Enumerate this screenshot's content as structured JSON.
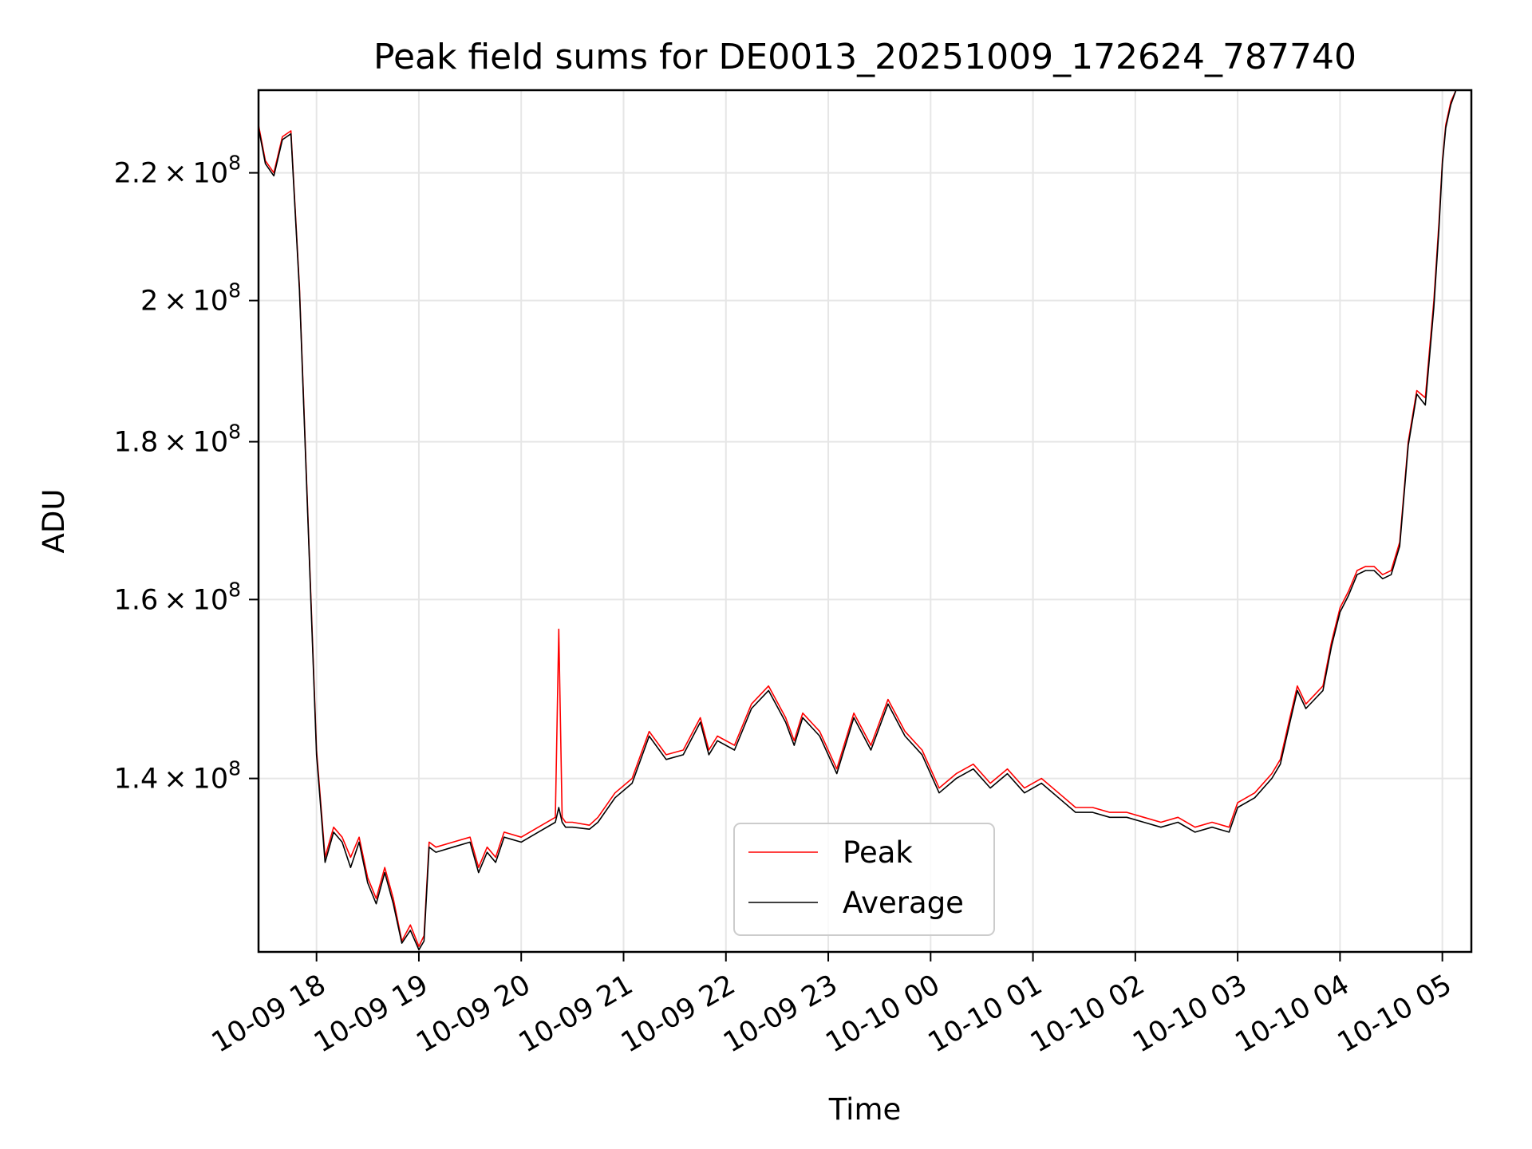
{
  "chart_data": {
    "type": "line",
    "title": "Peak field sums for DE0013_20251009_172624_787740",
    "xlabel": "Time",
    "ylabel": "ADU",
    "yscale": "log",
    "xlim": [
      "2025-10-09 17:26",
      "2025-10-10 05:17"
    ],
    "ylim": [
      123000000,
      234000000
    ],
    "grid": true,
    "legend_position": "lower-center",
    "x_ticks": [
      "10-09 18",
      "10-09 19",
      "10-09 20",
      "10-09 21",
      "10-09 22",
      "10-09 23",
      "10-10 00",
      "10-10 01",
      "10-10 02",
      "10-10 03",
      "10-10 04",
      "10-10 05"
    ],
    "y_ticks": [
      {
        "value": 140000000,
        "mantissa": "1.4",
        "exp": "8"
      },
      {
        "value": 160000000,
        "mantissa": "1.6",
        "exp": "8"
      },
      {
        "value": 180000000,
        "mantissa": "1.8",
        "exp": "8"
      },
      {
        "value": 200000000,
        "mantissa": "2",
        "exp": "8"
      },
      {
        "value": 220000000,
        "mantissa": "2.2",
        "exp": "8"
      }
    ],
    "x": [
      "2025-10-09 17:26",
      "2025-10-09 17:30",
      "2025-10-09 17:35",
      "2025-10-09 17:40",
      "2025-10-09 17:45",
      "2025-10-09 17:50",
      "2025-10-09 17:55",
      "2025-10-09 18:00",
      "2025-10-09 18:05",
      "2025-10-09 18:10",
      "2025-10-09 18:15",
      "2025-10-09 18:20",
      "2025-10-09 18:25",
      "2025-10-09 18:30",
      "2025-10-09 18:35",
      "2025-10-09 18:40",
      "2025-10-09 18:45",
      "2025-10-09 18:50",
      "2025-10-09 18:55",
      "2025-10-09 19:00",
      "2025-10-09 19:03",
      "2025-10-09 19:06",
      "2025-10-09 19:10",
      "2025-10-09 19:20",
      "2025-10-09 19:30",
      "2025-10-09 19:35",
      "2025-10-09 19:40",
      "2025-10-09 19:45",
      "2025-10-09 19:50",
      "2025-10-09 20:00",
      "2025-10-09 20:10",
      "2025-10-09 20:20",
      "2025-10-09 20:22",
      "2025-10-09 20:24",
      "2025-10-09 20:26",
      "2025-10-09 20:30",
      "2025-10-09 20:40",
      "2025-10-09 20:45",
      "2025-10-09 20:55",
      "2025-10-09 21:05",
      "2025-10-09 21:15",
      "2025-10-09 21:25",
      "2025-10-09 21:35",
      "2025-10-09 21:45",
      "2025-10-09 21:50",
      "2025-10-09 21:55",
      "2025-10-09 22:05",
      "2025-10-09 22:15",
      "2025-10-09 22:25",
      "2025-10-09 22:35",
      "2025-10-09 22:40",
      "2025-10-09 22:45",
      "2025-10-09 22:55",
      "2025-10-09 23:05",
      "2025-10-09 23:15",
      "2025-10-09 23:25",
      "2025-10-09 23:35",
      "2025-10-09 23:45",
      "2025-10-09 23:55",
      "2025-10-10 00:05",
      "2025-10-10 00:15",
      "2025-10-10 00:25",
      "2025-10-10 00:35",
      "2025-10-10 00:45",
      "2025-10-10 00:55",
      "2025-10-10 01:05",
      "2025-10-10 01:15",
      "2025-10-10 01:25",
      "2025-10-10 01:35",
      "2025-10-10 01:45",
      "2025-10-10 01:55",
      "2025-10-10 02:05",
      "2025-10-10 02:15",
      "2025-10-10 02:25",
      "2025-10-10 02:35",
      "2025-10-10 02:45",
      "2025-10-10 02:55",
      "2025-10-10 03:00",
      "2025-10-10 03:10",
      "2025-10-10 03:20",
      "2025-10-10 03:25",
      "2025-10-10 03:30",
      "2025-10-10 03:35",
      "2025-10-10 03:40",
      "2025-10-10 03:50",
      "2025-10-10 03:55",
      "2025-10-10 04:00",
      "2025-10-10 04:05",
      "2025-10-10 04:10",
      "2025-10-10 04:15",
      "2025-10-10 04:20",
      "2025-10-10 04:25",
      "2025-10-10 04:30",
      "2025-10-10 04:35",
      "2025-10-10 04:40",
      "2025-10-10 04:45",
      "2025-10-10 04:50",
      "2025-10-10 04:55",
      "2025-10-10 04:58",
      "2025-10-10 05:00",
      "2025-10-10 05:02",
      "2025-10-10 05:05",
      "2025-10-10 05:08",
      "2025-10-10 05:12",
      "2025-10-10 05:17"
    ],
    "series": [
      {
        "name": "Peak",
        "color": "#ff0000",
        "values": [
          228000000,
          222000000,
          220000000,
          226000000,
          227000000,
          202000000,
          170000000,
          143000000,
          132000000,
          135000000,
          134000000,
          132000000,
          134000000,
          130000000,
          128000000,
          131000000,
          128000000,
          124000000,
          125500000,
          123500000,
          124500000,
          133500000,
          133000000,
          133500000,
          134000000,
          131000000,
          133000000,
          132000000,
          134500000,
          134000000,
          135000000,
          136000000,
          156500000,
          136000000,
          135500000,
          135500000,
          135200000,
          136000000,
          138500000,
          140000000,
          145000000,
          142500000,
          143000000,
          146500000,
          143000000,
          144500000,
          143500000,
          148000000,
          150000000,
          146500000,
          144000000,
          147000000,
          145000000,
          141000000,
          147000000,
          143500000,
          148500000,
          145000000,
          143000000,
          139000000,
          140500000,
          141500000,
          139500000,
          141000000,
          139000000,
          140000000,
          138500000,
          137000000,
          137000000,
          136500000,
          136500000,
          136000000,
          135500000,
          136000000,
          135000000,
          135500000,
          135000000,
          137500000,
          138500000,
          140500000,
          142000000,
          146000000,
          150000000,
          148000000,
          150000000,
          155000000,
          159000000,
          161000000,
          163500000,
          164000000,
          164000000,
          163000000,
          163500000,
          167000000,
          180000000,
          187000000,
          186000000,
          200000000,
          212000000,
          222000000,
          228000000,
          232000000,
          234000000,
          234000000,
          234000000
        ]
      },
      {
        "name": "Average",
        "color": "#000000",
        "values": [
          227500000,
          221500000,
          219500000,
          225500000,
          226500000,
          201500000,
          169500000,
          142500000,
          131500000,
          134500000,
          133500000,
          131000000,
          133500000,
          129500000,
          127500000,
          130500000,
          127500000,
          123800000,
          125000000,
          123200000,
          124000000,
          133000000,
          132500000,
          133000000,
          133500000,
          130500000,
          132500000,
          131500000,
          134000000,
          133500000,
          134500000,
          135500000,
          137000000,
          135500000,
          135000000,
          135000000,
          134800000,
          135500000,
          138000000,
          139500000,
          144500000,
          142000000,
          142500000,
          146000000,
          142500000,
          144000000,
          143000000,
          147500000,
          149500000,
          146000000,
          143500000,
          146500000,
          144500000,
          140500000,
          146500000,
          143000000,
          148000000,
          144500000,
          142500000,
          138500000,
          140000000,
          141000000,
          139000000,
          140500000,
          138500000,
          139500000,
          138000000,
          136500000,
          136500000,
          136000000,
          136000000,
          135500000,
          135000000,
          135500000,
          134500000,
          135000000,
          134500000,
          137000000,
          138000000,
          140000000,
          141500000,
          145500000,
          149500000,
          147500000,
          149500000,
          154500000,
          158500000,
          160500000,
          163000000,
          163500000,
          163500000,
          162500000,
          163000000,
          166500000,
          179500000,
          186500000,
          185000000,
          199000000,
          211000000,
          221500000,
          227500000,
          231500000,
          234000000,
          234000000,
          234000000
        ]
      }
    ]
  }
}
